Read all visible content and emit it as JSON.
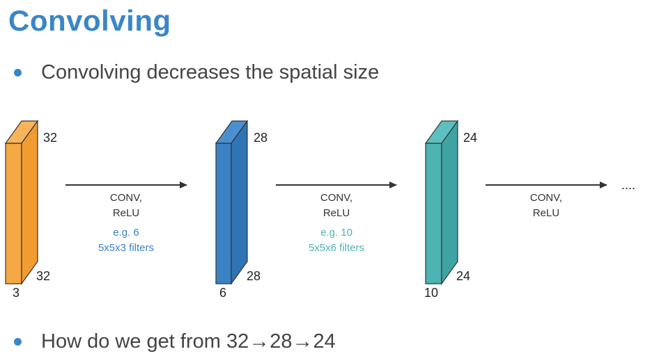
{
  "title": "Convolving",
  "bullets": [
    "Convolving decreases the spatial size",
    {
      "prefix": "How do we get from",
      "steps": [
        "32",
        "28",
        "24"
      ],
      "arrow": "→"
    }
  ],
  "volumes": [
    {
      "color": "#f5a843",
      "depth": "3",
      "height": "32",
      "width": "32"
    },
    {
      "color": "#3b82c4",
      "depth": "6",
      "height": "28",
      "width": "28"
    },
    {
      "color": "#4db3b3",
      "depth": "10",
      "height": "24",
      "width": "24"
    }
  ],
  "ops": [
    {
      "label_1": "CONV,",
      "label_2": "ReLU",
      "note_1": "e.g. 6",
      "note_2": "5x5x3 filters",
      "note_color": "#3b82c4"
    },
    {
      "label_1": "CONV,",
      "label_2": "ReLU",
      "note_1": "e.g. 10",
      "note_2": "5x5x6 filters",
      "note_color": "#4db3b3"
    },
    {
      "label_1": "CONV,",
      "label_2": "ReLU"
    }
  ],
  "continuation": "...."
}
